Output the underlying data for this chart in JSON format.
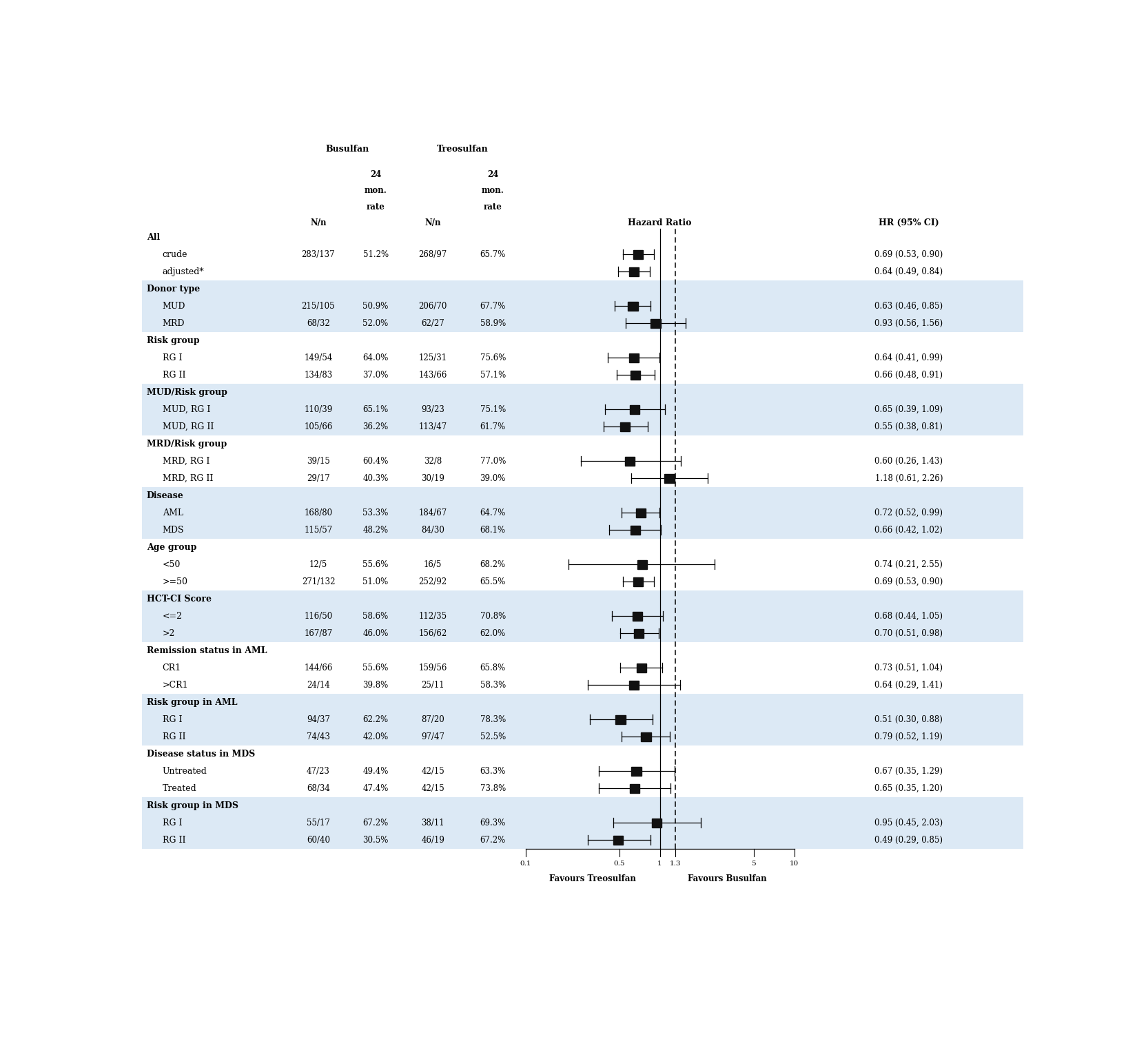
{
  "stripe_color": "#dce9f5",
  "rows": [
    {
      "label": "All",
      "indent": 0,
      "bold": true,
      "bus_nn": "",
      "bus_rate": "",
      "treo_nn": "",
      "treo_rate": "",
      "hr": null,
      "lo": null,
      "hi": null,
      "ci_text": "",
      "stripe": false
    },
    {
      "label": "crude",
      "indent": 1,
      "bold": false,
      "bus_nn": "283/137",
      "bus_rate": "51.2%",
      "treo_nn": "268/97",
      "treo_rate": "65.7%",
      "hr": 0.69,
      "lo": 0.53,
      "hi": 0.9,
      "ci_text": "0.69 (0.53, 0.90)",
      "stripe": false
    },
    {
      "label": "adjusted*",
      "indent": 1,
      "bold": false,
      "bus_nn": "",
      "bus_rate": "",
      "treo_nn": "",
      "treo_rate": "",
      "hr": 0.64,
      "lo": 0.49,
      "hi": 0.84,
      "ci_text": "0.64 (0.49, 0.84)",
      "stripe": false
    },
    {
      "label": "Donor type",
      "indent": 0,
      "bold": true,
      "bus_nn": "",
      "bus_rate": "",
      "treo_nn": "",
      "treo_rate": "",
      "hr": null,
      "lo": null,
      "hi": null,
      "ci_text": "",
      "stripe": true
    },
    {
      "label": "MUD",
      "indent": 1,
      "bold": false,
      "bus_nn": "215/105",
      "bus_rate": "50.9%",
      "treo_nn": "206/70",
      "treo_rate": "67.7%",
      "hr": 0.63,
      "lo": 0.46,
      "hi": 0.85,
      "ci_text": "0.63 (0.46, 0.85)",
      "stripe": true
    },
    {
      "label": "MRD",
      "indent": 1,
      "bold": false,
      "bus_nn": "68/32",
      "bus_rate": "52.0%",
      "treo_nn": "62/27",
      "treo_rate": "58.9%",
      "hr": 0.93,
      "lo": 0.56,
      "hi": 1.56,
      "ci_text": "0.93 (0.56, 1.56)",
      "stripe": true
    },
    {
      "label": "Risk group",
      "indent": 0,
      "bold": true,
      "bus_nn": "",
      "bus_rate": "",
      "treo_nn": "",
      "treo_rate": "",
      "hr": null,
      "lo": null,
      "hi": null,
      "ci_text": "",
      "stripe": false
    },
    {
      "label": "RG I",
      "indent": 1,
      "bold": false,
      "bus_nn": "149/54",
      "bus_rate": "64.0%",
      "treo_nn": "125/31",
      "treo_rate": "75.6%",
      "hr": 0.64,
      "lo": 0.41,
      "hi": 0.99,
      "ci_text": "0.64 (0.41, 0.99)",
      "stripe": false
    },
    {
      "label": "RG II",
      "indent": 1,
      "bold": false,
      "bus_nn": "134/83",
      "bus_rate": "37.0%",
      "treo_nn": "143/66",
      "treo_rate": "57.1%",
      "hr": 0.66,
      "lo": 0.48,
      "hi": 0.91,
      "ci_text": "0.66 (0.48, 0.91)",
      "stripe": false
    },
    {
      "label": "MUD/Risk group",
      "indent": 0,
      "bold": true,
      "bus_nn": "",
      "bus_rate": "",
      "treo_nn": "",
      "treo_rate": "",
      "hr": null,
      "lo": null,
      "hi": null,
      "ci_text": "",
      "stripe": true
    },
    {
      "label": "MUD, RG I",
      "indent": 1,
      "bold": false,
      "bus_nn": "110/39",
      "bus_rate": "65.1%",
      "treo_nn": "93/23",
      "treo_rate": "75.1%",
      "hr": 0.65,
      "lo": 0.39,
      "hi": 1.09,
      "ci_text": "0.65 (0.39, 1.09)",
      "stripe": true
    },
    {
      "label": "MUD, RG II",
      "indent": 1,
      "bold": false,
      "bus_nn": "105/66",
      "bus_rate": "36.2%",
      "treo_nn": "113/47",
      "treo_rate": "61.7%",
      "hr": 0.55,
      "lo": 0.38,
      "hi": 0.81,
      "ci_text": "0.55 (0.38, 0.81)",
      "stripe": true
    },
    {
      "label": "MRD/Risk group",
      "indent": 0,
      "bold": true,
      "bus_nn": "",
      "bus_rate": "",
      "treo_nn": "",
      "treo_rate": "",
      "hr": null,
      "lo": null,
      "hi": null,
      "ci_text": "",
      "stripe": false
    },
    {
      "label": "MRD, RG I",
      "indent": 1,
      "bold": false,
      "bus_nn": "39/15",
      "bus_rate": "60.4%",
      "treo_nn": "32/8",
      "treo_rate": "77.0%",
      "hr": 0.6,
      "lo": 0.26,
      "hi": 1.43,
      "ci_text": "0.60 (0.26, 1.43)",
      "stripe": false
    },
    {
      "label": "MRD, RG II",
      "indent": 1,
      "bold": false,
      "bus_nn": "29/17",
      "bus_rate": "40.3%",
      "treo_nn": "30/19",
      "treo_rate": "39.0%",
      "hr": 1.18,
      "lo": 0.61,
      "hi": 2.26,
      "ci_text": "1.18 (0.61, 2.26)",
      "stripe": false
    },
    {
      "label": "Disease",
      "indent": 0,
      "bold": true,
      "bus_nn": "",
      "bus_rate": "",
      "treo_nn": "",
      "treo_rate": "",
      "hr": null,
      "lo": null,
      "hi": null,
      "ci_text": "",
      "stripe": true
    },
    {
      "label": "AML",
      "indent": 1,
      "bold": false,
      "bus_nn": "168/80",
      "bus_rate": "53.3%",
      "treo_nn": "184/67",
      "treo_rate": "64.7%",
      "hr": 0.72,
      "lo": 0.52,
      "hi": 0.99,
      "ci_text": "0.72 (0.52, 0.99)",
      "stripe": true
    },
    {
      "label": "MDS",
      "indent": 1,
      "bold": false,
      "bus_nn": "115/57",
      "bus_rate": "48.2%",
      "treo_nn": "84/30",
      "treo_rate": "68.1%",
      "hr": 0.66,
      "lo": 0.42,
      "hi": 1.02,
      "ci_text": "0.66 (0.42, 1.02)",
      "stripe": true
    },
    {
      "label": "Age group",
      "indent": 0,
      "bold": true,
      "bus_nn": "",
      "bus_rate": "",
      "treo_nn": "",
      "treo_rate": "",
      "hr": null,
      "lo": null,
      "hi": null,
      "ci_text": "",
      "stripe": false
    },
    {
      "label": "<50",
      "indent": 1,
      "bold": false,
      "bus_nn": "12/5",
      "bus_rate": "55.6%",
      "treo_nn": "16/5",
      "treo_rate": "68.2%",
      "hr": 0.74,
      "lo": 0.21,
      "hi": 2.55,
      "ci_text": "0.74 (0.21, 2.55)",
      "stripe": false
    },
    {
      "label": ">=50",
      "indent": 1,
      "bold": false,
      "bus_nn": "271/132",
      "bus_rate": "51.0%",
      "treo_nn": "252/92",
      "treo_rate": "65.5%",
      "hr": 0.69,
      "lo": 0.53,
      "hi": 0.9,
      "ci_text": "0.69 (0.53, 0.90)",
      "stripe": false
    },
    {
      "label": "HCT-CI Score",
      "indent": 0,
      "bold": true,
      "bus_nn": "",
      "bus_rate": "",
      "treo_nn": "",
      "treo_rate": "",
      "hr": null,
      "lo": null,
      "hi": null,
      "ci_text": "",
      "stripe": true
    },
    {
      "label": "<=2",
      "indent": 1,
      "bold": false,
      "bus_nn": "116/50",
      "bus_rate": "58.6%",
      "treo_nn": "112/35",
      "treo_rate": "70.8%",
      "hr": 0.68,
      "lo": 0.44,
      "hi": 1.05,
      "ci_text": "0.68 (0.44, 1.05)",
      "stripe": true
    },
    {
      "label": ">2",
      "indent": 1,
      "bold": false,
      "bus_nn": "167/87",
      "bus_rate": "46.0%",
      "treo_nn": "156/62",
      "treo_rate": "62.0%",
      "hr": 0.7,
      "lo": 0.51,
      "hi": 0.98,
      "ci_text": "0.70 (0.51, 0.98)",
      "stripe": true
    },
    {
      "label": "Remission status in AML",
      "indent": 0,
      "bold": true,
      "bus_nn": "",
      "bus_rate": "",
      "treo_nn": "",
      "treo_rate": "",
      "hr": null,
      "lo": null,
      "hi": null,
      "ci_text": "",
      "stripe": false
    },
    {
      "label": "CR1",
      "indent": 1,
      "bold": false,
      "bus_nn": "144/66",
      "bus_rate": "55.6%",
      "treo_nn": "159/56",
      "treo_rate": "65.8%",
      "hr": 0.73,
      "lo": 0.51,
      "hi": 1.04,
      "ci_text": "0.73 (0.51, 1.04)",
      "stripe": false
    },
    {
      "label": ">CR1",
      "indent": 1,
      "bold": false,
      "bus_nn": "24/14",
      "bus_rate": "39.8%",
      "treo_nn": "25/11",
      "treo_rate": "58.3%",
      "hr": 0.64,
      "lo": 0.29,
      "hi": 1.41,
      "ci_text": "0.64 (0.29, 1.41)",
      "stripe": false
    },
    {
      "label": "Risk group in AML",
      "indent": 0,
      "bold": true,
      "bus_nn": "",
      "bus_rate": "",
      "treo_nn": "",
      "treo_rate": "",
      "hr": null,
      "lo": null,
      "hi": null,
      "ci_text": "",
      "stripe": true
    },
    {
      "label": "RG I",
      "indent": 1,
      "bold": false,
      "bus_nn": "94/37",
      "bus_rate": "62.2%",
      "treo_nn": "87/20",
      "treo_rate": "78.3%",
      "hr": 0.51,
      "lo": 0.3,
      "hi": 0.88,
      "ci_text": "0.51 (0.30, 0.88)",
      "stripe": true
    },
    {
      "label": "RG II",
      "indent": 1,
      "bold": false,
      "bus_nn": "74/43",
      "bus_rate": "42.0%",
      "treo_nn": "97/47",
      "treo_rate": "52.5%",
      "hr": 0.79,
      "lo": 0.52,
      "hi": 1.19,
      "ci_text": "0.79 (0.52, 1.19)",
      "stripe": true
    },
    {
      "label": "Disease status in MDS",
      "indent": 0,
      "bold": true,
      "bus_nn": "",
      "bus_rate": "",
      "treo_nn": "",
      "treo_rate": "",
      "hr": null,
      "lo": null,
      "hi": null,
      "ci_text": "",
      "stripe": false
    },
    {
      "label": "Untreated",
      "indent": 1,
      "bold": false,
      "bus_nn": "47/23",
      "bus_rate": "49.4%",
      "treo_nn": "42/15",
      "treo_rate": "63.3%",
      "hr": 0.67,
      "lo": 0.35,
      "hi": 1.29,
      "ci_text": "0.67 (0.35, 1.29)",
      "stripe": false
    },
    {
      "label": "Treated",
      "indent": 1,
      "bold": false,
      "bus_nn": "68/34",
      "bus_rate": "47.4%",
      "treo_nn": "42/15",
      "treo_rate": "73.8%",
      "hr": 0.65,
      "lo": 0.35,
      "hi": 1.2,
      "ci_text": "0.65 (0.35, 1.20)",
      "stripe": false
    },
    {
      "label": "Risk group in MDS",
      "indent": 0,
      "bold": true,
      "bus_nn": "",
      "bus_rate": "",
      "treo_nn": "",
      "treo_rate": "",
      "hr": null,
      "lo": null,
      "hi": null,
      "ci_text": "",
      "stripe": true
    },
    {
      "label": "RG I",
      "indent": 1,
      "bold": false,
      "bus_nn": "55/17",
      "bus_rate": "67.2%",
      "treo_nn": "38/11",
      "treo_rate": "69.3%",
      "hr": 0.95,
      "lo": 0.45,
      "hi": 2.03,
      "ci_text": "0.95 (0.45, 2.03)",
      "stripe": true
    },
    {
      "label": "RG II",
      "indent": 1,
      "bold": false,
      "bus_nn": "60/40",
      "bus_rate": "30.5%",
      "treo_nn": "46/19",
      "treo_rate": "67.2%",
      "hr": 0.49,
      "lo": 0.29,
      "hi": 0.85,
      "ci_text": "0.49 (0.29, 0.85)",
      "stripe": true
    }
  ],
  "x_min": 0.1,
  "x_max": 10.0,
  "x_ticks": [
    0.1,
    0.5,
    1.0,
    1.3,
    5.0,
    10.0
  ],
  "x_tick_labels": [
    "0.1",
    "0.5",
    "1",
    "1.3",
    "5",
    "10"
  ],
  "ref_line": 1.0,
  "dashed_line": 1.3,
  "favours_left": "Favours Treosulfan",
  "favours_right": "Favours Busulfan"
}
